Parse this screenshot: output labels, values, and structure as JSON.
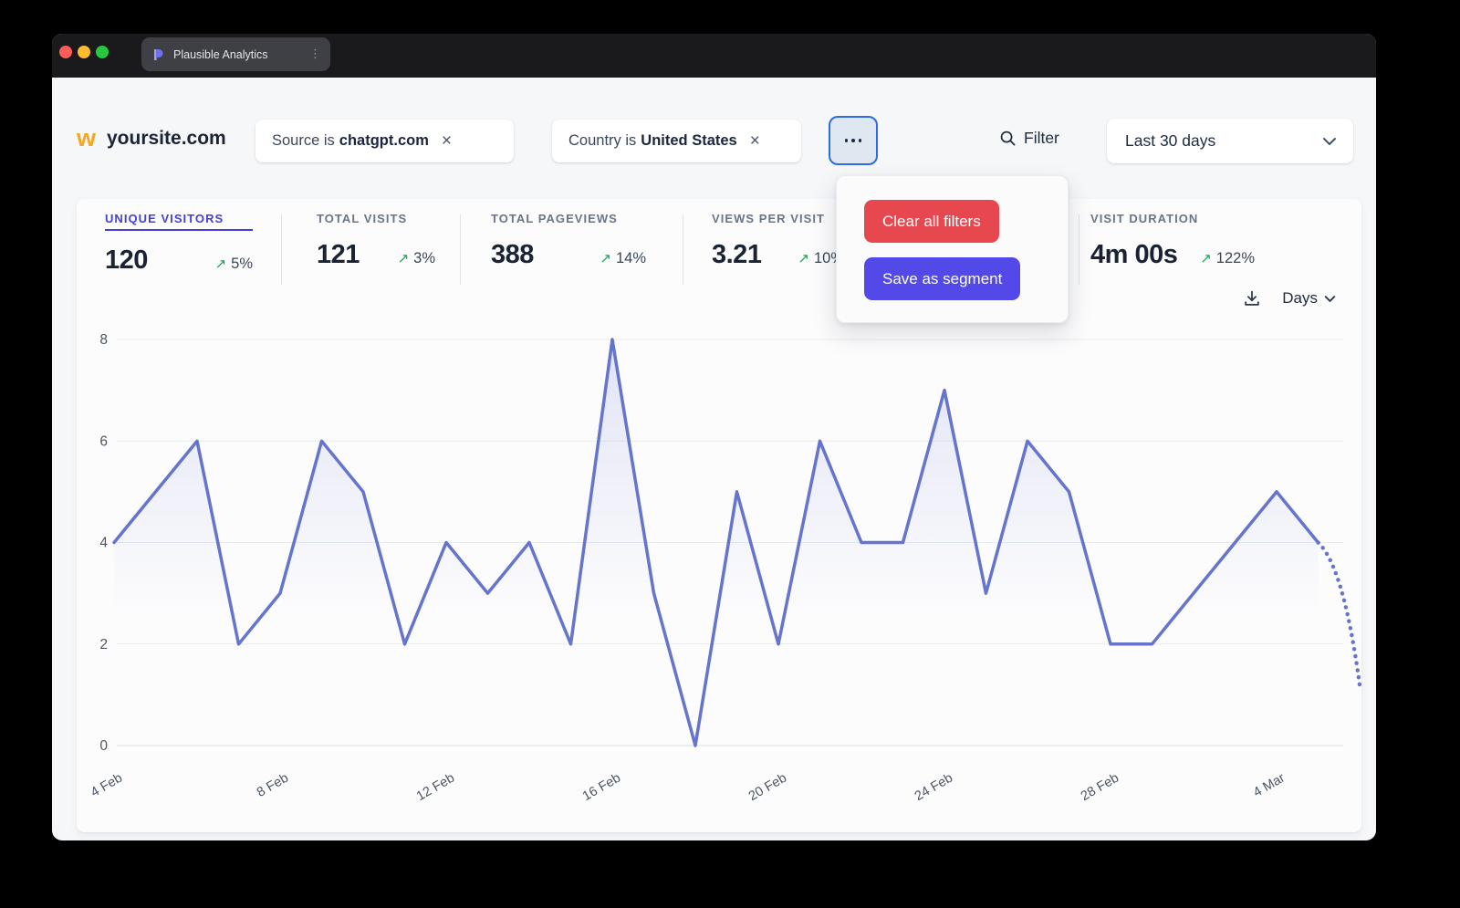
{
  "window": {
    "tab_title": "Plausible Analytics"
  },
  "header": {
    "site_name": "yoursite.com",
    "filters": [
      {
        "prefix": "Source is",
        "value": "chatgpt.com"
      },
      {
        "prefix": "Country is",
        "value": "United States"
      }
    ],
    "filter_label": "Filter",
    "date_range": "Last 30 days"
  },
  "metrics": [
    {
      "label": "UNIQUE VISITORS",
      "value": "120",
      "change": "5%"
    },
    {
      "label": "TOTAL VISITS",
      "value": "121",
      "change": "3%"
    },
    {
      "label": "TOTAL PAGEVIEWS",
      "value": "388",
      "change": "14%"
    },
    {
      "label": "VIEWS PER VISIT",
      "value": "3.21",
      "change": "10%"
    },
    {
      "label": "VISIT DURATION",
      "value": "4m 00s",
      "change": "122%"
    }
  ],
  "popup": {
    "clear_label": "Clear all filters",
    "save_label": "Save as segment"
  },
  "toolbar": {
    "interval_label": "Days"
  },
  "colors": {
    "accent_indigo": "#4340d9",
    "line": "#6574cd",
    "green": "#21a453",
    "red_button": "#e7484f",
    "purple_button": "#5348e8",
    "focus_ring": "#2e6be5"
  },
  "chart_data": {
    "type": "line",
    "series_name": "Unique visitors",
    "x": [
      "4 Feb",
      "5 Feb",
      "6 Feb",
      "7 Feb",
      "8 Feb",
      "9 Feb",
      "10 Feb",
      "11 Feb",
      "12 Feb",
      "13 Feb",
      "14 Feb",
      "15 Feb",
      "16 Feb",
      "17 Feb",
      "18 Feb",
      "19 Feb",
      "20 Feb",
      "21 Feb",
      "22 Feb",
      "23 Feb",
      "24 Feb",
      "25 Feb",
      "26 Feb",
      "27 Feb",
      "28 Feb",
      "1 Mar",
      "2 Mar",
      "3 Mar",
      "4 Mar",
      "5 Mar",
      "6 Mar"
    ],
    "values": [
      4,
      5,
      6,
      2,
      3,
      6,
      5,
      2,
      4,
      3,
      4,
      2,
      8,
      3,
      0,
      5,
      2,
      6,
      4,
      4,
      7,
      3,
      6,
      5,
      2,
      2,
      3,
      4,
      5,
      4,
      1.2
    ],
    "dashed_from_index": 29,
    "x_tick_indices": [
      0,
      4,
      8,
      12,
      16,
      20,
      24,
      28
    ],
    "x_tick_labels": [
      "4 Feb",
      "8 Feb",
      "12 Feb",
      "16 Feb",
      "20 Feb",
      "24 Feb",
      "28 Feb",
      "4 Mar"
    ],
    "yticks": [
      0,
      2,
      4,
      6,
      8
    ],
    "ylim": [
      0,
      8
    ],
    "grid": true,
    "legend": "none",
    "line_color": "#6574cd",
    "fill_color": "rgba(101,116,205,0.18)",
    "axis_text_color": "#4c5563",
    "grid_color": "#e8eaee"
  }
}
